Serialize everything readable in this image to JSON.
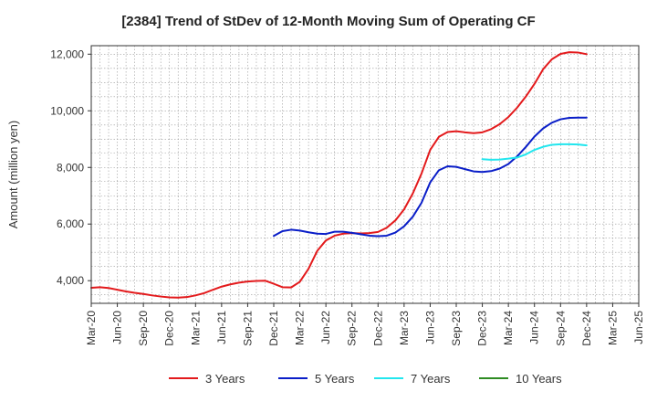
{
  "chart_data": {
    "type": "line",
    "title": "[2384]  Trend of StDev of 12-Month Moving Sum of Operating CF",
    "xlabel": "",
    "ylabel": "Amount (million yen)",
    "ylim": [
      3200,
      12300
    ],
    "yticks": [
      4000,
      6000,
      8000,
      10000,
      12000
    ],
    "ytick_labels": [
      "4,000",
      "6,000",
      "8,000",
      "10,000",
      "12,000"
    ],
    "x_start": "2020-03",
    "x_end": "2025-06",
    "xtick_labels": [
      "Mar-20",
      "Jun-20",
      "Sep-20",
      "Dec-20",
      "Mar-21",
      "Jun-21",
      "Sep-21",
      "Dec-21",
      "Mar-22",
      "Jun-22",
      "Sep-22",
      "Dec-22",
      "Mar-23",
      "Jun-23",
      "Sep-23",
      "Dec-23",
      "Mar-24",
      "Jun-24",
      "Sep-24",
      "Dec-24",
      "Mar-25",
      "Jun-25"
    ],
    "grid": true,
    "legend_position": "bottom",
    "series": [
      {
        "name": "3 Years",
        "color": "#e31a1c",
        "x": [
          "2020-03",
          "2020-04",
          "2020-05",
          "2020-06",
          "2020-07",
          "2020-08",
          "2020-09",
          "2020-10",
          "2020-11",
          "2020-12",
          "2021-01",
          "2021-02",
          "2021-03",
          "2021-04",
          "2021-05",
          "2021-06",
          "2021-07",
          "2021-08",
          "2021-09",
          "2021-10",
          "2021-11",
          "2021-12",
          "2022-01",
          "2022-02",
          "2022-03",
          "2022-04",
          "2022-05",
          "2022-06",
          "2022-07",
          "2022-08",
          "2022-09",
          "2022-10",
          "2022-11",
          "2022-12",
          "2023-01",
          "2023-02",
          "2023-03",
          "2023-04",
          "2023-05",
          "2023-06",
          "2023-07",
          "2023-08",
          "2023-09",
          "2023-10",
          "2023-11",
          "2023-12",
          "2024-01",
          "2024-02",
          "2024-03",
          "2024-04",
          "2024-05",
          "2024-06",
          "2024-07",
          "2024-08",
          "2024-09",
          "2024-10",
          "2024-11",
          "2024-12"
        ],
        "values": [
          3750,
          3770,
          3740,
          3680,
          3620,
          3570,
          3530,
          3480,
          3440,
          3410,
          3400,
          3420,
          3480,
          3560,
          3680,
          3790,
          3870,
          3930,
          3970,
          3990,
          4000,
          3890,
          3770,
          3760,
          3960,
          4420,
          5050,
          5420,
          5590,
          5660,
          5680,
          5670,
          5680,
          5720,
          5870,
          6130,
          6520,
          7080,
          7780,
          8620,
          9080,
          9250,
          9280,
          9240,
          9210,
          9240,
          9350,
          9530,
          9780,
          10110,
          10500,
          10950,
          11470,
          11820,
          12010,
          12070,
          12060,
          12000
        ]
      },
      {
        "name": "5 Years",
        "color": "#0a1ec8",
        "x": [
          "2021-12",
          "2022-01",
          "2022-02",
          "2022-03",
          "2022-04",
          "2022-05",
          "2022-06",
          "2022-07",
          "2022-08",
          "2022-09",
          "2022-10",
          "2022-11",
          "2022-12",
          "2023-01",
          "2023-02",
          "2023-03",
          "2023-04",
          "2023-05",
          "2023-06",
          "2023-07",
          "2023-08",
          "2023-09",
          "2023-10",
          "2023-11",
          "2023-12",
          "2024-01",
          "2024-02",
          "2024-03",
          "2024-04",
          "2024-05",
          "2024-06",
          "2024-07",
          "2024-08",
          "2024-09",
          "2024-10",
          "2024-11",
          "2024-12"
        ],
        "values": [
          5580,
          5750,
          5800,
          5770,
          5710,
          5660,
          5650,
          5730,
          5730,
          5690,
          5640,
          5590,
          5570,
          5590,
          5700,
          5920,
          6260,
          6750,
          7470,
          7900,
          8040,
          8020,
          7940,
          7860,
          7840,
          7870,
          7960,
          8120,
          8390,
          8720,
          9090,
          9380,
          9580,
          9700,
          9750,
          9760,
          9760
        ]
      },
      {
        "name": "7 Years",
        "color": "#22e6ee",
        "x": [
          "2023-12",
          "2024-01",
          "2024-02",
          "2024-03",
          "2024-04",
          "2024-05",
          "2024-06",
          "2024-07",
          "2024-08",
          "2024-09",
          "2024-10",
          "2024-11",
          "2024-12"
        ],
        "values": [
          8290,
          8270,
          8280,
          8310,
          8350,
          8460,
          8620,
          8730,
          8800,
          8820,
          8820,
          8810,
          8780
        ]
      },
      {
        "name": "10 Years",
        "color": "#2e8b22",
        "x": [],
        "values": []
      }
    ]
  }
}
